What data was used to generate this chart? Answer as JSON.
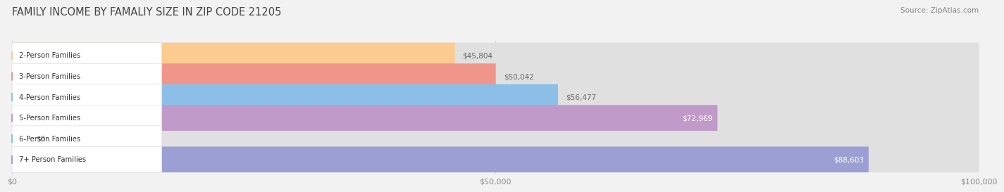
{
  "title": "FAMILY INCOME BY FAMALIY SIZE IN ZIP CODE 21205",
  "source": "Source: ZipAtlas.com",
  "categories": [
    "2-Person Families",
    "3-Person Families",
    "4-Person Families",
    "5-Person Families",
    "6-Person Families",
    "7+ Person Families"
  ],
  "values": [
    45804,
    50042,
    56477,
    72969,
    0,
    88603
  ],
  "colors": [
    "#FBCB8F",
    "#F0958A",
    "#8BBFE8",
    "#C09AC8",
    "#7DCFC4",
    "#9B9FD4"
  ],
  "value_labels": [
    "$45,804",
    "$50,042",
    "$56,477",
    "$72,969",
    "$0",
    "$88,603"
  ],
  "value_label_colors": [
    "#777777",
    "#777777",
    "#777777",
    "#ffffff",
    "#777777",
    "#ffffff"
  ],
  "xmax": 100000,
  "xticks": [
    0,
    50000,
    100000
  ],
  "xtick_labels": [
    "$0",
    "$50,000",
    "$100,000"
  ],
  "bar_height": 0.62,
  "bg_color": "#F2F2F2",
  "bar_bg_color": "#E0E0E0"
}
